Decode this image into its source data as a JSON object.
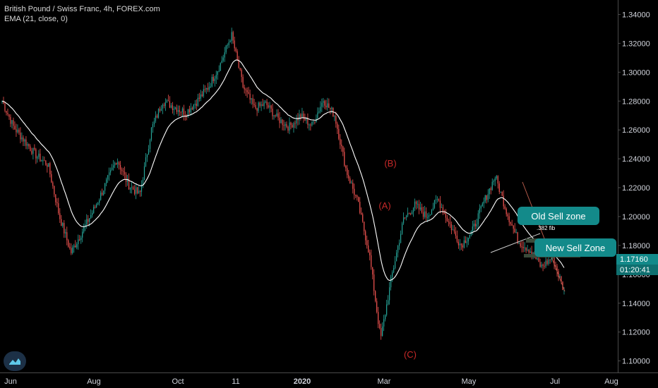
{
  "legend": {
    "symbol_line": "British Pound / Swiss Franc, 4h, FOREX.com",
    "indicator_line": "EMA (21, close, 0)"
  },
  "colors": {
    "background": "#000000",
    "candle_up": "#26a69a",
    "candle_down": "#ef5350",
    "ema": "#ffffff",
    "wave_labels": "#c62828",
    "zone_box": "#138a8a",
    "price_badge": "#138a8a",
    "axis_text": "#d1d4dc"
  },
  "chart_data": {
    "type": "candlestick",
    "symbol": "British Pound / Swiss Franc",
    "interval": "4h",
    "source": "FOREX.com",
    "indicator": "EMA (21, close, 0)",
    "ylim": [
      1.092,
      1.35
    ],
    "y_ticks": [
      "1.34000",
      "1.32000",
      "1.30000",
      "1.28000",
      "1.26000",
      "1.24000",
      "1.22000",
      "1.20000",
      "1.18000",
      "1.16000",
      "1.14000",
      "1.12000",
      "1.10000"
    ],
    "x_ticks": [
      "Jun",
      "Aug",
      "Oct",
      "11",
      "2020",
      "Mar",
      "May",
      "Jul",
      "Aug"
    ],
    "price_path": [
      [
        "Jun",
        1.28
      ],
      [
        "Jun",
        1.262
      ],
      [
        "Jun",
        1.252
      ],
      [
        "Jul",
        1.242
      ],
      [
        "Jul",
        1.236
      ],
      [
        "Aug",
        1.2
      ],
      [
        "Aug",
        1.175
      ],
      [
        "Aug",
        1.19
      ],
      [
        "Aug",
        1.205
      ],
      [
        "Sep",
        1.222
      ],
      [
        "Sep",
        1.24
      ],
      [
        "Sep",
        1.222
      ],
      [
        "Oct",
        1.215
      ],
      [
        "Oct",
        1.26
      ],
      [
        "Oct",
        1.28
      ],
      [
        "Nov",
        1.276
      ],
      [
        "Nov",
        1.272
      ],
      [
        "Nov",
        1.28
      ],
      [
        "Dec",
        1.29
      ],
      [
        "Dec",
        1.305
      ],
      [
        "Dec",
        1.326
      ],
      [
        "Dec",
        1.29
      ],
      [
        "Jan",
        1.275
      ],
      [
        "Jan",
        1.278
      ],
      [
        "Jan",
        1.268
      ],
      [
        "Feb",
        1.262
      ],
      [
        "Feb",
        1.27
      ],
      [
        "Feb",
        1.263
      ],
      [
        "Feb",
        1.281
      ],
      [
        "Mar",
        1.27
      ],
      [
        "Mar",
        1.232
      ],
      [
        "Mar",
        1.21
      ],
      [
        "Mar",
        1.175
      ],
      [
        "Mar",
        1.115
      ],
      [
        "Apr",
        1.16
      ],
      [
        "Apr",
        1.198
      ],
      [
        "Apr",
        1.208
      ],
      [
        "May",
        1.2
      ],
      [
        "May",
        1.212
      ],
      [
        "May",
        1.195
      ],
      [
        "May",
        1.18
      ],
      [
        "May",
        1.19
      ],
      [
        "Jun",
        1.21
      ],
      [
        "Jun",
        1.228
      ],
      [
        "Jun",
        1.203
      ],
      [
        "Jun",
        1.183
      ],
      [
        "Jun",
        1.177
      ],
      [
        "Jun",
        1.165
      ],
      [
        "Jul",
        1.172
      ],
      [
        "Jul",
        1.148
      ]
    ],
    "annotations": [
      {
        "text": "(B)"
      },
      {
        "text": "(A)"
      },
      {
        "text": "(C)"
      },
      {
        "text": "Old Sell zone"
      },
      {
        "text": "New Sell Zone"
      },
      {
        "text": ".382 fib"
      }
    ],
    "current_price": "1.17160",
    "countdown": "01:20:41"
  }
}
